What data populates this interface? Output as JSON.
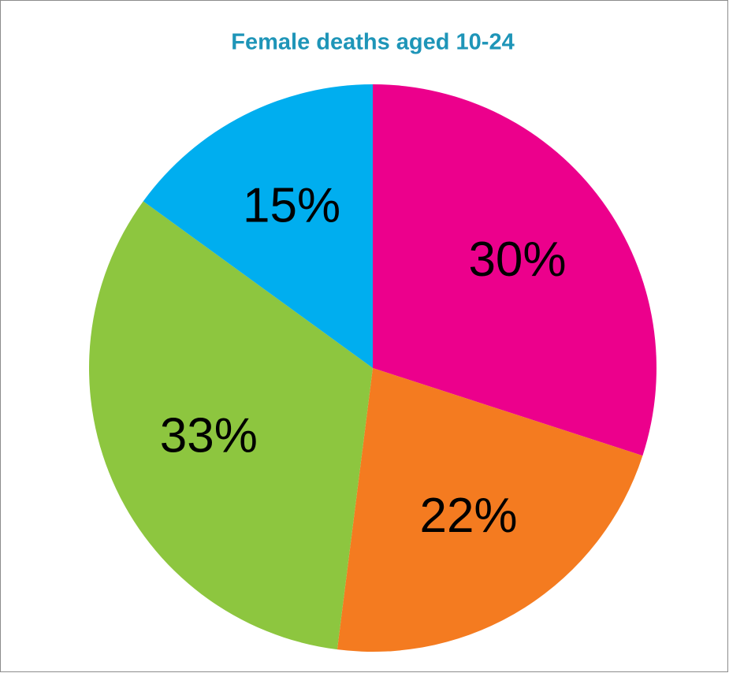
{
  "chart_data": {
    "type": "pie",
    "title": "Female deaths aged 10-24",
    "values": [
      30,
      22,
      33,
      15
    ],
    "value_labels": [
      "30%",
      "22%",
      "33%",
      "15%"
    ],
    "colors": [
      "#ec008c",
      "#f47b20",
      "#8dc63f",
      "#00aeef"
    ],
    "start_angle": 0,
    "direction": "clockwise"
  }
}
